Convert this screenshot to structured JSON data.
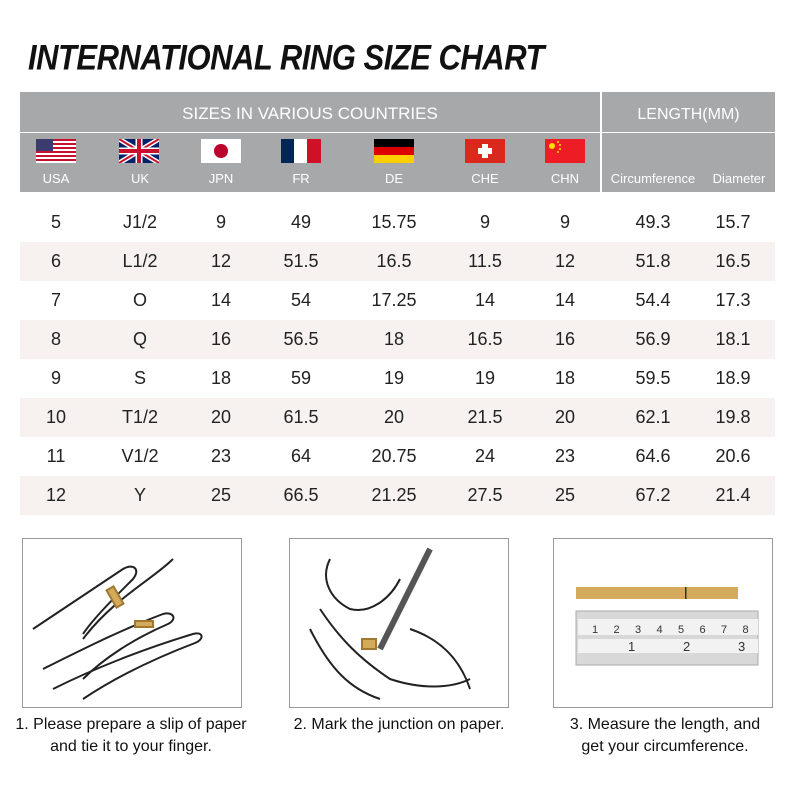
{
  "title": "INTERNATIONAL RING SIZE CHART",
  "header": {
    "sizes_label": "SIZES IN VARIOUS COUNTRIES",
    "length_label": "LENGTH(MM)",
    "columns": [
      "USA",
      "UK",
      "JPN",
      "FR",
      "DE",
      "CHE",
      "CHN",
      "Circumference",
      "Diameter"
    ]
  },
  "rows": [
    [
      "5",
      "J1/2",
      "9",
      "49",
      "15.75",
      "9",
      "9",
      "49.3",
      "15.7"
    ],
    [
      "6",
      "L1/2",
      "12",
      "51.5",
      "16.5",
      "11.5",
      "12",
      "51.8",
      "16.5"
    ],
    [
      "7",
      "O",
      "14",
      "54",
      "17.25",
      "14",
      "14",
      "54.4",
      "17.3"
    ],
    [
      "8",
      "Q",
      "16",
      "56.5",
      "18",
      "16.5",
      "16",
      "56.9",
      "18.1"
    ],
    [
      "9",
      "S",
      "18",
      "59",
      "19",
      "19",
      "18",
      "59.5",
      "18.9"
    ],
    [
      "10",
      "T1/2",
      "20",
      "61.5",
      "20",
      "21.5",
      "20",
      "62.1",
      "19.8"
    ],
    [
      "11",
      "V1/2",
      "23",
      "64",
      "20.75",
      "24",
      "23",
      "64.6",
      "20.6"
    ],
    [
      "12",
      "Y",
      "25",
      "66.5",
      "21.25",
      "27.5",
      "25",
      "67.2",
      "21.4"
    ]
  ],
  "steps": [
    {
      "line1": "1. Please prepare a slip of paper",
      "line2": "and tie it to your finger."
    },
    {
      "line1": "2. Mark the junction on paper.",
      "line2": ""
    },
    {
      "line1": "3. Measure the length, and",
      "line2": "get your circumference."
    }
  ],
  "ruler": {
    "cm_ticks": [
      "1",
      "2",
      "3",
      "4",
      "5",
      "6",
      "7",
      "8"
    ],
    "inch_ticks": [
      "1",
      "2",
      "3"
    ]
  },
  "colors": {
    "header": "#a7a8aa",
    "stripe": "#f7f2f0",
    "paper": "#d4aa5c"
  }
}
